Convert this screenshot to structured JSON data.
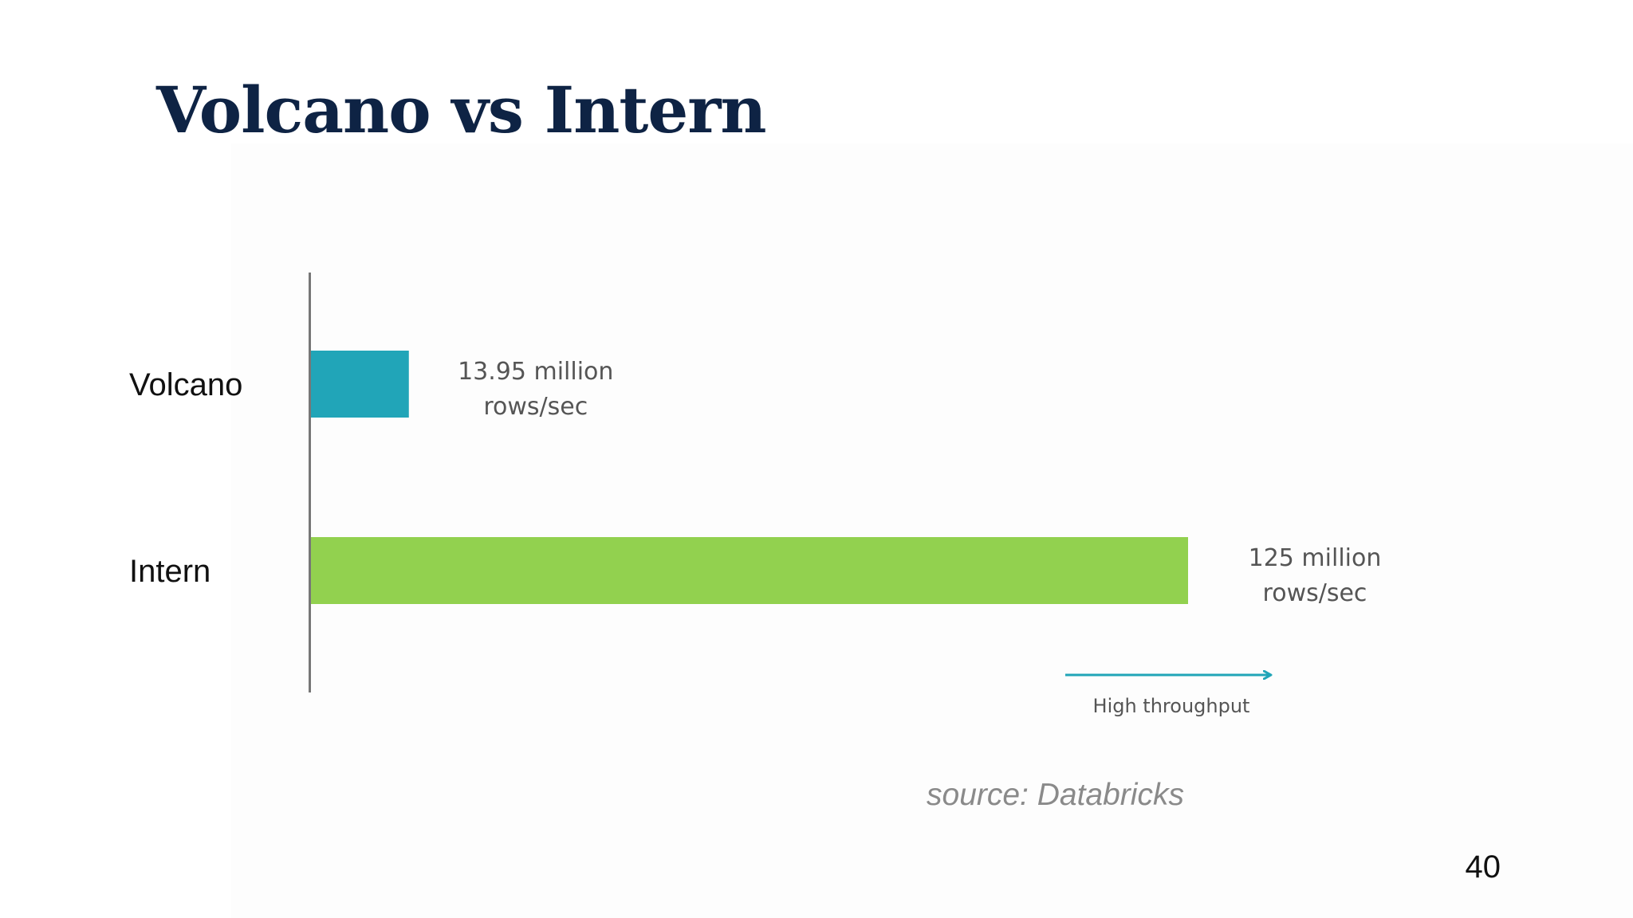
{
  "slide": {
    "title": "Volcano vs Intern",
    "source": "source: Databricks",
    "page_number": "40"
  },
  "chart_data": {
    "type": "bar",
    "orientation": "horizontal",
    "categories": [
      "Volcano",
      "Intern"
    ],
    "values": [
      13.95,
      125
    ],
    "unit": "million rows/sec",
    "value_labels": [
      [
        "13.95 million",
        "rows/sec"
      ],
      [
        "125 million",
        "rows/sec"
      ]
    ],
    "colors": [
      "#21a5b8",
      "#92d14f"
    ],
    "annotation": "High throughput",
    "annotation_color": "#21a5b8",
    "xlim": [
      0,
      125
    ],
    "grid": false
  }
}
